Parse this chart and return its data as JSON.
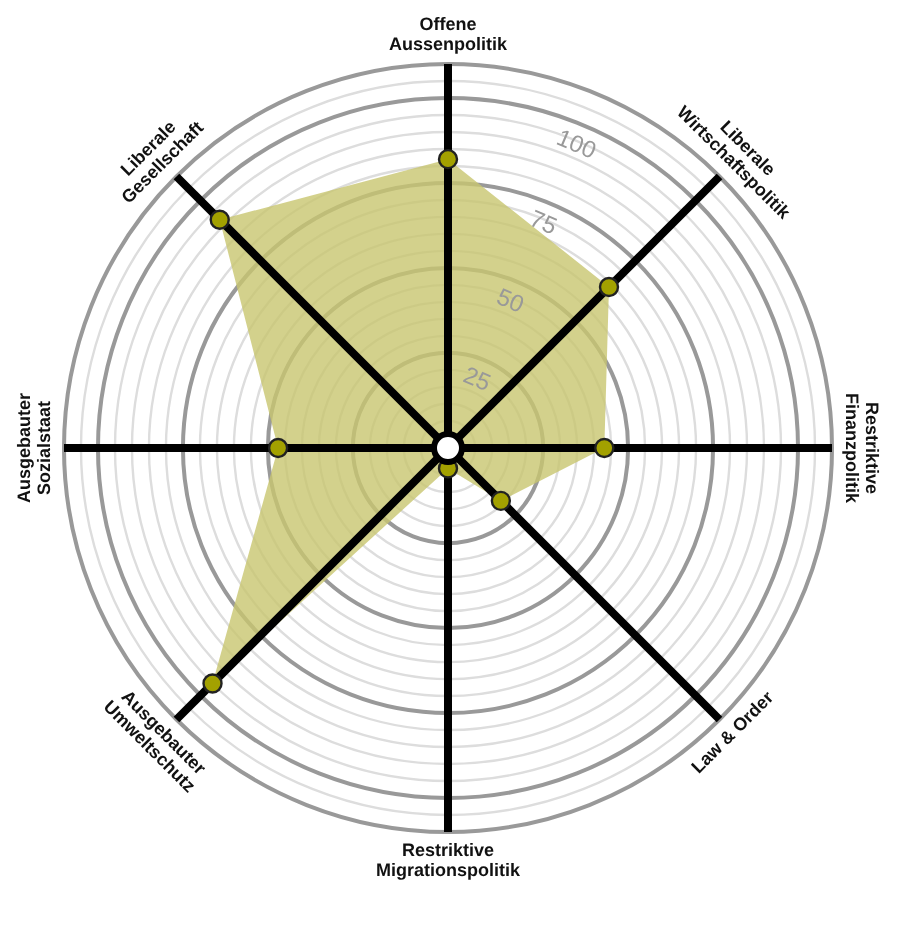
{
  "chart_data": {
    "type": "radar",
    "categories": [
      "Offene\nAussenpolitik",
      "Liberale\nWirtschaftspolitik",
      "Restriktive\nFinanzpolitik",
      "Law & Order",
      "Restriktive\nMigrationspolitik",
      "Ausgebauter\nUmweltschutz",
      "Ausgebauter\nSozialstaat",
      "Liberale\nGesellschaft"
    ],
    "series": [
      {
        "color": "#c8c66f",
        "values": [
          82,
          64,
          43,
          19,
          3,
          95,
          47,
          92
        ]
      }
    ],
    "ylim": [
      -3,
      110
    ],
    "yticks": [
      25,
      50,
      75,
      100
    ],
    "marker": "circle",
    "grid": true
  }
}
